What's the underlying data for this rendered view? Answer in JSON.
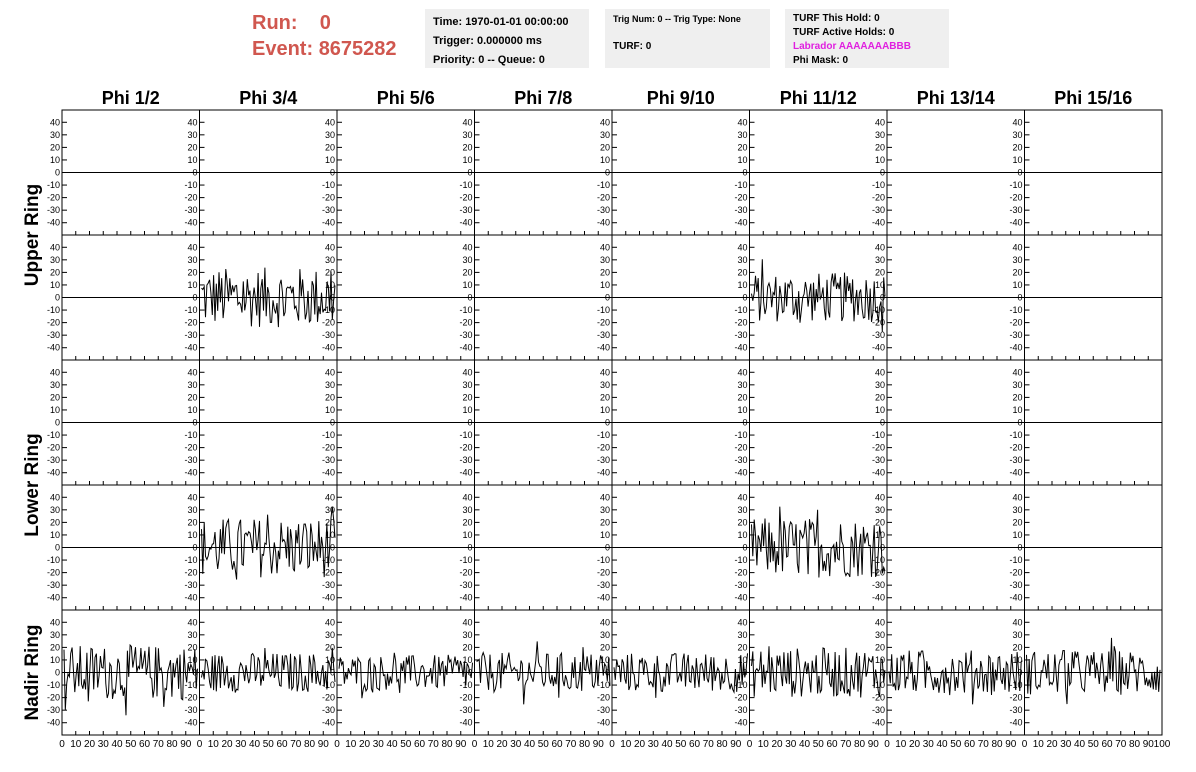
{
  "header": {
    "run_label": "Run:",
    "run_value": "0",
    "event_label": "Event:",
    "event_value": "8675282",
    "time": "Time: 1970-01-01 00:00:00",
    "trigger": "Trigger: 0.000000 ms",
    "priority": "Priority: 0 -- Queue: 0",
    "trig_num": "Trig Num: 0 -- Trig Type: None",
    "turf": "TURF: 0",
    "turf_this_hold": "TURF This Hold: 0",
    "turf_active_holds": "TURF Active Holds: 0",
    "labrador": "Labrador AAAAAAABBB",
    "phi_mask": "Phi Mask: 0",
    "labrador_color": "#e020e0",
    "run_color": "#d0574f"
  },
  "columns": [
    "Phi 1/2",
    "Phi 3/4",
    "Phi 5/6",
    "Phi 7/8",
    "Phi 9/10",
    "Phi 11/12",
    "Phi 13/14",
    "Phi 15/16"
  ],
  "ring_labels": [
    "Upper Ring",
    "Lower Ring",
    "Nadir Ring"
  ],
  "chart_data": {
    "type": "line",
    "title": "",
    "ylim": [
      -45,
      45
    ],
    "xlim": [
      0,
      100
    ],
    "y_ticks": [
      -40,
      -30,
      -20,
      -10,
      0,
      10,
      20,
      30,
      40
    ],
    "x_ticks": [
      0,
      10,
      20,
      30,
      40,
      50,
      60,
      70,
      80,
      90,
      100
    ],
    "y_tick_labels": [
      "-40",
      "-30",
      "-20",
      "-10",
      "0",
      "10",
      "20",
      "30",
      "40"
    ],
    "x_tick_labels": [
      "0",
      "10",
      "20",
      "30",
      "40",
      "50",
      "60",
      "70",
      "80",
      "90",
      "100"
    ],
    "panel_rows": [
      {
        "ring": "Upper Ring",
        "active": [
          false,
          false,
          false,
          false,
          false,
          false,
          false,
          false
        ],
        "amplitude": [
          0,
          0,
          0,
          0,
          0,
          0,
          0,
          0
        ]
      },
      {
        "ring": "Upper Ring",
        "active": [
          false,
          true,
          false,
          false,
          false,
          true,
          false,
          false
        ],
        "amplitude": [
          0,
          24,
          0,
          0,
          0,
          20,
          0,
          0
        ]
      },
      {
        "ring": "Lower Ring",
        "active": [
          false,
          false,
          false,
          false,
          false,
          false,
          false,
          false
        ],
        "amplitude": [
          0,
          0,
          0,
          0,
          0,
          0,
          0,
          0
        ]
      },
      {
        "ring": "Lower Ring",
        "active": [
          false,
          true,
          false,
          false,
          false,
          true,
          false,
          false
        ],
        "amplitude": [
          0,
          24,
          0,
          0,
          0,
          24,
          0,
          0
        ]
      },
      {
        "ring": "Nadir Ring",
        "active": [
          true,
          true,
          true,
          true,
          true,
          true,
          true,
          true
        ],
        "amplitude": [
          22,
          16,
          14,
          16,
          16,
          20,
          18,
          18
        ]
      }
    ]
  }
}
